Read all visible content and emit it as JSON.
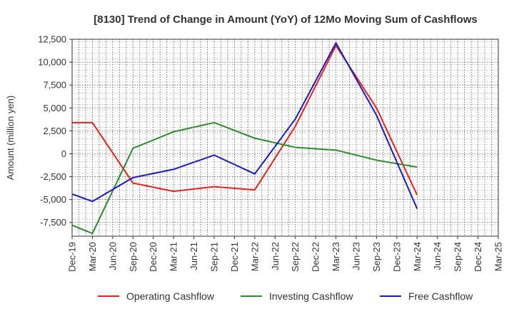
{
  "chart_data": {
    "type": "line",
    "title": "[8130]  Trend of Change in Amount (YoY) of 12Mo Moving Sum of Cashflows",
    "xlabel": "",
    "ylabel": "Amount (million yen)",
    "ylim": [
      -9000,
      12500
    ],
    "yticks": [
      12500,
      10000,
      7500,
      5000,
      2500,
      0,
      -2500,
      -5000,
      -7500
    ],
    "ytick_labels": [
      "12,500",
      "10,000",
      "7,500",
      "5,000",
      "2,500",
      "0",
      "-2,500",
      "-5,000",
      "-7,500"
    ],
    "categories": [
      "Dec-19",
      "Mar-20",
      "Jun-20",
      "Sep-20",
      "Dec-20",
      "Mar-21",
      "Jun-21",
      "Sep-21",
      "Dec-21",
      "Mar-22",
      "Jun-22",
      "Sep-22",
      "Dec-22",
      "Mar-23",
      "Jun-23",
      "Sep-23",
      "Dec-23",
      "Mar-24",
      "Jun-24",
      "Sep-24",
      "Dec-24",
      "Mar-25"
    ],
    "grid": true,
    "legend_position": "bottom",
    "series": [
      {
        "name": "Operating Cashflow",
        "color": "#e8221c",
        "values": [
          3400,
          3400,
          null,
          -3200,
          null,
          -4100,
          null,
          -3600,
          null,
          -3950,
          null,
          3000,
          null,
          11800,
          null,
          5000,
          null,
          -4500,
          null,
          null,
          null,
          null
        ]
      },
      {
        "name": "Investing Cashflow",
        "color": "#2e8b2e",
        "values": [
          -7800,
          -8700,
          null,
          600,
          null,
          2400,
          null,
          3400,
          null,
          1700,
          null,
          700,
          null,
          400,
          null,
          -700,
          null,
          -1450,
          null,
          null,
          null,
          null
        ]
      },
      {
        "name": "Free Cashflow",
        "color": "#1a1acc",
        "values": [
          -4400,
          -5200,
          null,
          -2600,
          null,
          -1700,
          null,
          -150,
          null,
          -2200,
          null,
          3800,
          null,
          12100,
          null,
          4200,
          null,
          -6000,
          null,
          null,
          null,
          null
        ]
      }
    ]
  }
}
